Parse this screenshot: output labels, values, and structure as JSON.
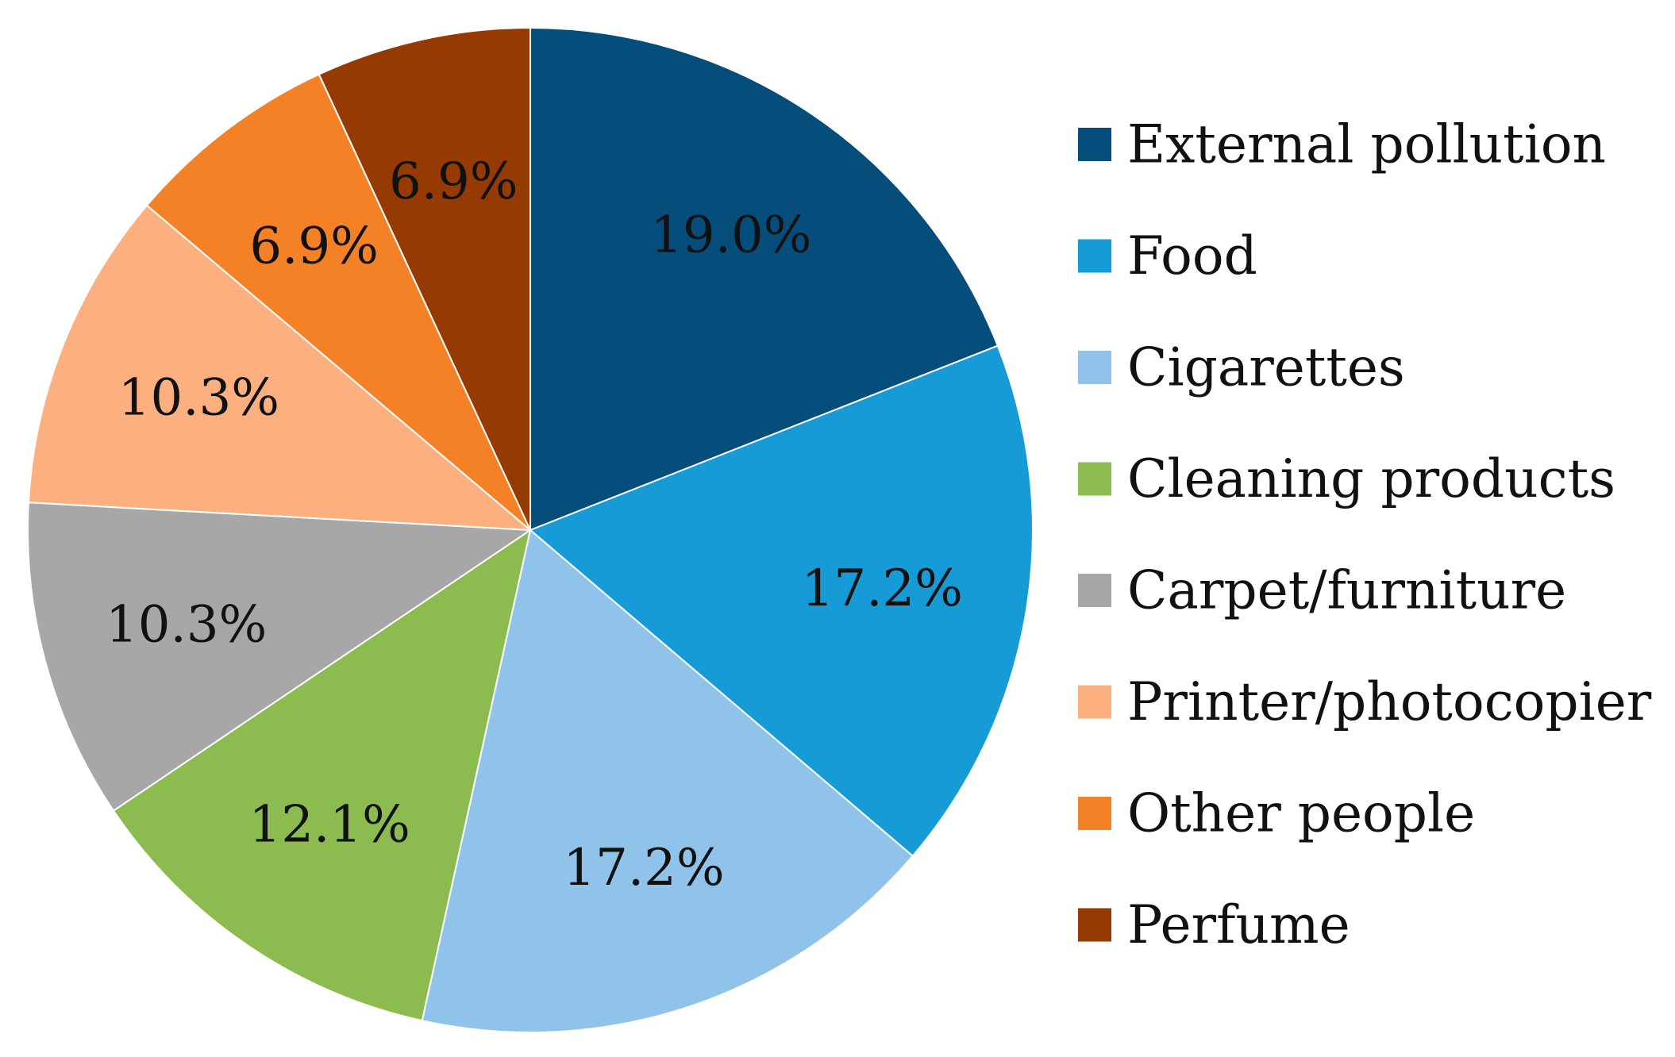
{
  "chart_data": {
    "type": "pie",
    "start_angle": "12 o'clock",
    "direction": "clockwise",
    "legend_position": "right",
    "slice_border_color": "#ffffff",
    "label_color": "#111111",
    "series": [
      {
        "label": "External pollution",
        "value": 19.0,
        "display": "19.0%",
        "color": "#054E7C"
      },
      {
        "label": "Food",
        "value": 17.2,
        "display": "17.2%",
        "color": "#179BD7"
      },
      {
        "label": "Cigarettes",
        "value": 17.2,
        "display": "17.2%",
        "color": "#8FC3E9"
      },
      {
        "label": "Cleaning products",
        "value": 12.1,
        "display": "12.1%",
        "color": "#8CBB4F"
      },
      {
        "label": "Carpet/furniture",
        "value": 10.3,
        "display": "10.3%",
        "color": "#A7A7A7"
      },
      {
        "label": "Printer/photocopier",
        "value": 10.3,
        "display": "10.3%",
        "color": "#FCB07F"
      },
      {
        "label": "Other people",
        "value": 6.9,
        "display": "6.9%",
        "color": "#F58126"
      },
      {
        "label": "Perfume",
        "value": 6.9,
        "display": "6.9%",
        "color": "#963A04"
      }
    ]
  }
}
